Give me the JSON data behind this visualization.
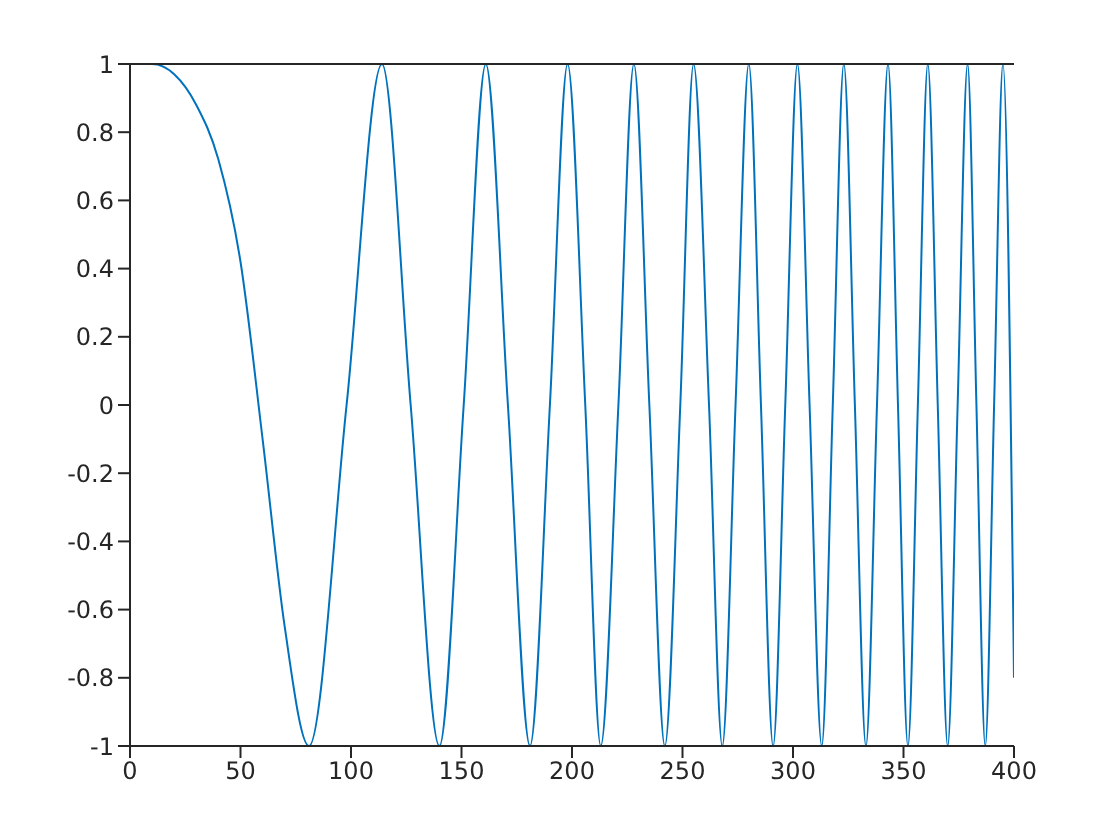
{
  "chart_data": {
    "type": "line",
    "color": "#0072bd",
    "line_style": "solid",
    "marker": "none",
    "grid": false,
    "legend": false,
    "x": [
      0,
      10,
      20,
      30,
      40,
      50,
      60,
      70,
      81,
      98,
      114,
      127,
      140,
      151,
      161,
      171,
      181,
      190,
      198,
      206,
      213,
      221,
      228,
      235,
      242,
      249,
      255,
      262,
      268,
      274,
      280,
      285.5,
      291,
      296.5,
      302,
      307.5,
      313,
      318,
      323,
      328,
      333,
      338,
      343,
      347.5,
      352,
      356.5,
      361,
      365.5,
      370,
      374.5,
      379,
      383,
      387,
      391,
      395,
      400
    ],
    "values": [
      1,
      1,
      0.97,
      0.88,
      0.72,
      0.42,
      -0.1,
      -0.65,
      -1,
      0,
      1,
      0,
      -1,
      0,
      1,
      0,
      -1,
      0,
      1,
      0,
      -1,
      0,
      1,
      0,
      -1,
      0,
      1,
      0,
      -1,
      0,
      1,
      0,
      -1,
      0,
      1,
      0,
      -1,
      0,
      1,
      0,
      -1,
      0,
      1,
      0,
      -1,
      0,
      1,
      0,
      -1,
      0,
      1,
      0,
      -1,
      0,
      1,
      -0.8
    ],
    "xlim": [
      0,
      400
    ],
    "xticks": [
      0,
      50,
      100,
      150,
      200,
      250,
      300,
      350,
      400
    ],
    "ylim": [
      -1,
      1
    ],
    "yticks": [
      -1,
      -0.8,
      -0.6,
      -0.4,
      -0.2,
      0,
      0.2,
      0.4,
      0.6,
      0.8,
      1
    ]
  }
}
